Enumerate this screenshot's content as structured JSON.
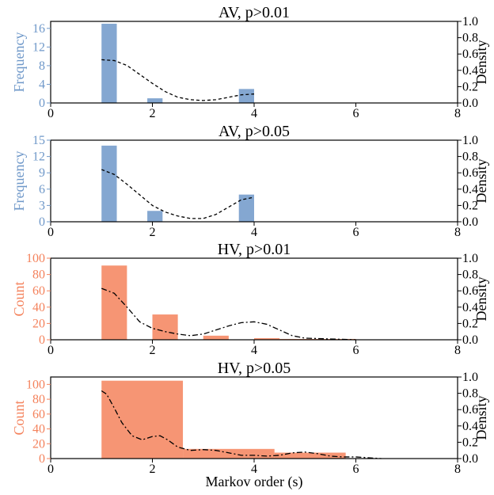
{
  "colors": {
    "av": "#6f98c9",
    "hv": "#f4825c",
    "frame": "#000000"
  },
  "chart_data": [
    {
      "type": "bar",
      "title": "AV, p>0.01",
      "ylabel": "Frequency",
      "y2label": "Density",
      "color": "av",
      "xlim": [
        0,
        8
      ],
      "xticks": [
        "0",
        "2",
        "4",
        "6",
        "8"
      ],
      "ylim": [
        0,
        17.5
      ],
      "yticks": [
        "0",
        "4",
        "8",
        "12",
        "16"
      ],
      "y2lim": [
        0,
        1.0
      ],
      "y2ticks": [
        "0.0",
        "0.2",
        "0.4",
        "0.6",
        "0.8",
        "1.0"
      ],
      "bins": [
        {
          "x0": 1.0,
          "x1": 1.3,
          "value": 17
        },
        {
          "x0": 1.9,
          "x1": 2.2,
          "value": 1
        },
        {
          "x0": 3.7,
          "x1": 4.0,
          "value": 3
        }
      ],
      "kde": {
        "style": "dashed",
        "points": [
          [
            1.0,
            0.53
          ],
          [
            1.25,
            0.52
          ],
          [
            1.5,
            0.46
          ],
          [
            1.75,
            0.35
          ],
          [
            2.0,
            0.24
          ],
          [
            2.25,
            0.14
          ],
          [
            2.5,
            0.07
          ],
          [
            2.75,
            0.04
          ],
          [
            3.0,
            0.03
          ],
          [
            3.25,
            0.04
          ],
          [
            3.5,
            0.07
          ],
          [
            3.75,
            0.1
          ],
          [
            4.0,
            0.11
          ]
        ]
      }
    },
    {
      "type": "bar",
      "title": "AV, p>0.05",
      "ylabel": "Frequency",
      "y2label": "Density",
      "color": "av",
      "xlim": [
        0,
        8
      ],
      "xticks": [
        "0",
        "2",
        "4",
        "6",
        "8"
      ],
      "ylim": [
        0,
        15
      ],
      "yticks": [
        "0",
        "3",
        "6",
        "9",
        "12",
        "15"
      ],
      "y2lim": [
        0,
        1.0
      ],
      "y2ticks": [
        "0.0",
        "0.2",
        "0.4",
        "0.6",
        "0.8",
        "1.0"
      ],
      "bins": [
        {
          "x0": 1.0,
          "x1": 1.3,
          "value": 14
        },
        {
          "x0": 1.9,
          "x1": 2.2,
          "value": 2
        },
        {
          "x0": 3.7,
          "x1": 4.0,
          "value": 5
        }
      ],
      "kde": {
        "style": "dashed",
        "points": [
          [
            1.0,
            0.64
          ],
          [
            1.25,
            0.58
          ],
          [
            1.5,
            0.46
          ],
          [
            1.75,
            0.33
          ],
          [
            2.0,
            0.2
          ],
          [
            2.25,
            0.12
          ],
          [
            2.5,
            0.07
          ],
          [
            2.75,
            0.04
          ],
          [
            3.0,
            0.04
          ],
          [
            3.25,
            0.09
          ],
          [
            3.5,
            0.18
          ],
          [
            3.75,
            0.27
          ],
          [
            4.0,
            0.3
          ]
        ]
      }
    },
    {
      "type": "bar",
      "title": "HV, p>0.01",
      "ylabel": "Count",
      "y2label": "Density",
      "color": "hv",
      "xlim": [
        0,
        8
      ],
      "xticks": [
        "0",
        "2",
        "4",
        "6",
        "8"
      ],
      "ylim": [
        0,
        100
      ],
      "yticks": [
        "0",
        "20",
        "40",
        "60",
        "80",
        "100"
      ],
      "y2lim": [
        0,
        1.0
      ],
      "y2ticks": [
        "0.0",
        "0.2",
        "0.4",
        "0.6",
        "0.8",
        "1.0"
      ],
      "bins": [
        {
          "x0": 1.0,
          "x1": 1.5,
          "value": 91
        },
        {
          "x0": 2.0,
          "x1": 2.5,
          "value": 31
        },
        {
          "x0": 3.0,
          "x1": 3.5,
          "value": 5
        },
        {
          "x0": 4.0,
          "x1": 4.5,
          "value": 2
        },
        {
          "x0": 4.5,
          "x1": 6.0,
          "value": 1
        }
      ],
      "kde": {
        "style": "dashdot",
        "points": [
          [
            1.0,
            0.63
          ],
          [
            1.25,
            0.57
          ],
          [
            1.5,
            0.4
          ],
          [
            1.75,
            0.22
          ],
          [
            2.0,
            0.14
          ],
          [
            2.25,
            0.1
          ],
          [
            2.5,
            0.07
          ],
          [
            2.75,
            0.05
          ],
          [
            3.0,
            0.07
          ],
          [
            3.25,
            0.12
          ],
          [
            3.5,
            0.17
          ],
          [
            3.75,
            0.21
          ],
          [
            4.0,
            0.22
          ],
          [
            4.25,
            0.19
          ],
          [
            4.5,
            0.12
          ],
          [
            4.75,
            0.05
          ],
          [
            5.0,
            0.02
          ],
          [
            5.5,
            0.01
          ],
          [
            6.0,
            0.0
          ]
        ]
      }
    },
    {
      "type": "bar",
      "title": "HV, p>0.05",
      "ylabel": "Count",
      "y2label": "Density",
      "xlabel": "Markov order (s)",
      "color": "hv",
      "xlim": [
        0,
        8
      ],
      "xticks": [
        "0",
        "2",
        "4",
        "6",
        "8"
      ],
      "ylim": [
        0,
        110
      ],
      "yticks": [
        "0",
        "20",
        "40",
        "60",
        "80",
        "100"
      ],
      "y2lim": [
        0,
        1.0
      ],
      "y2ticks": [
        "0.0",
        "0.2",
        "0.4",
        "0.6",
        "0.8",
        "1.0"
      ],
      "bins": [
        {
          "x0": 1.0,
          "x1": 2.6,
          "value": 105
        },
        {
          "x0": 2.6,
          "x1": 4.4,
          "value": 13
        },
        {
          "x0": 4.4,
          "x1": 5.8,
          "value": 8
        }
      ],
      "kde": {
        "style": "dashdot",
        "points": [
          [
            1.0,
            0.83
          ],
          [
            1.1,
            0.79
          ],
          [
            1.25,
            0.62
          ],
          [
            1.4,
            0.44
          ],
          [
            1.6,
            0.28
          ],
          [
            1.8,
            0.23
          ],
          [
            2.0,
            0.27
          ],
          [
            2.15,
            0.28
          ],
          [
            2.3,
            0.23
          ],
          [
            2.5,
            0.14
          ],
          [
            2.75,
            0.1
          ],
          [
            3.0,
            0.11
          ],
          [
            3.25,
            0.1
          ],
          [
            3.5,
            0.07
          ],
          [
            3.75,
            0.04
          ],
          [
            4.0,
            0.04
          ],
          [
            4.25,
            0.03
          ],
          [
            4.5,
            0.04
          ],
          [
            4.75,
            0.07
          ],
          [
            5.0,
            0.08
          ],
          [
            5.25,
            0.06
          ],
          [
            5.5,
            0.03
          ],
          [
            5.75,
            0.02
          ],
          [
            6.0,
            0.02
          ],
          [
            6.5,
            0.0
          ]
        ]
      }
    }
  ]
}
